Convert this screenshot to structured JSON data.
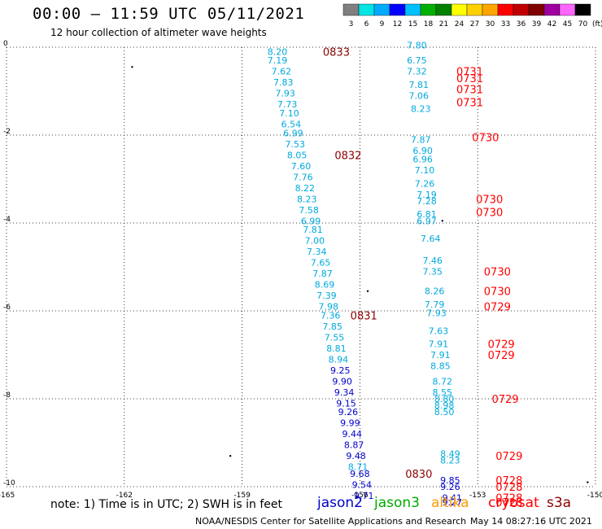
{
  "header": {
    "title": "00:00 – 11:59 UTC 05/11/2021",
    "subtitle": "12 hour collection of altimeter wave heights"
  },
  "colorbar": {
    "labels": [
      "3",
      "6",
      "9",
      "12",
      "15",
      "18",
      "21",
      "24",
      "27",
      "30",
      "33",
      "36",
      "39",
      "42",
      "45",
      "70"
    ],
    "unit": "(ft)",
    "colors": [
      "#808080",
      "#00e5e5",
      "#00aaff",
      "#0000ff",
      "#00c0ff",
      "#00b000",
      "#008000",
      "#ffff00",
      "#ffd000",
      "#ffa500",
      "#ff0000",
      "#c00000",
      "#800000",
      "#a000a0",
      "#ff66ff",
      "#000000"
    ]
  },
  "footer": {
    "note": "note:  1) Time is in UTC;  2) SWH is in feet",
    "credit": "NOAA/NESDIS Center for Satellite Applications and Research",
    "timestamp": "May 14 08:27:16 UTC 2021"
  },
  "legend": [
    {
      "label": "jason2",
      "color": "#0000cc"
    },
    {
      "label": "jason3",
      "color": "#00aa00"
    },
    {
      "label": "altika",
      "color": "#ff9900"
    },
    {
      "label": "cryosat",
      "color": "#ff0000"
    },
    {
      "label": "s3a",
      "color": "#8b0000"
    }
  ],
  "chart_data": {
    "type": "scatter",
    "title": "00:00 – 11:59 UTC 05/11/2021",
    "subtitle": "12 hour collection of altimeter wave heights",
    "xlim": [
      -165,
      -150
    ],
    "ylim": [
      -10,
      0
    ],
    "x_ticks": [
      "-165",
      "-162",
      "-159",
      "-156",
      "-153",
      "-150"
    ],
    "y_ticks": [
      "0",
      "-2",
      "-4",
      "-6",
      "-8",
      "-10"
    ],
    "grid": true,
    "unit": "ft",
    "track_a": [
      {
        "lon": -158.1,
        "lat": -0.1,
        "v": "8.20",
        "c": "#00aadd"
      },
      {
        "lon": -158.1,
        "lat": -0.3,
        "v": "7.19",
        "c": "#00aadd"
      },
      {
        "lon": -158.0,
        "lat": -0.55,
        "v": "7.62",
        "c": "#00aadd"
      },
      {
        "lon": -157.95,
        "lat": -0.8,
        "v": "7.83",
        "c": "#00aadd"
      },
      {
        "lon": -157.9,
        "lat": -1.05,
        "v": "7.93",
        "c": "#00aadd"
      },
      {
        "lon": -157.85,
        "lat": -1.3,
        "v": "7.73",
        "c": "#00aadd"
      },
      {
        "lon": -157.8,
        "lat": -1.5,
        "v": "7.10",
        "c": "#00aadd"
      },
      {
        "lon": -157.75,
        "lat": -1.75,
        "v": "6.54",
        "c": "#00aadd"
      },
      {
        "lon": -157.7,
        "lat": -1.95,
        "v": "6.99",
        "c": "#00aadd"
      },
      {
        "lon": -157.65,
        "lat": -2.2,
        "v": "7.53",
        "c": "#00aadd"
      },
      {
        "lon": -157.6,
        "lat": -2.45,
        "v": "8.05",
        "c": "#00aadd"
      },
      {
        "lon": -157.5,
        "lat": -2.7,
        "v": "7.60",
        "c": "#00aadd"
      },
      {
        "lon": -157.45,
        "lat": -2.95,
        "v": "7.76",
        "c": "#00aadd"
      },
      {
        "lon": -157.4,
        "lat": -3.2,
        "v": "8.22",
        "c": "#00aadd"
      },
      {
        "lon": -157.35,
        "lat": -3.45,
        "v": "8.23",
        "c": "#00aadd"
      },
      {
        "lon": -157.3,
        "lat": -3.7,
        "v": "7.58",
        "c": "#00aadd"
      },
      {
        "lon": -157.25,
        "lat": -3.95,
        "v": "6.99",
        "c": "#00aadd"
      },
      {
        "lon": -157.2,
        "lat": -4.15,
        "v": "7.81",
        "c": "#00aadd"
      },
      {
        "lon": -157.15,
        "lat": -4.4,
        "v": "7.00",
        "c": "#00aadd"
      },
      {
        "lon": -157.1,
        "lat": -4.65,
        "v": "7.34",
        "c": "#00aadd"
      },
      {
        "lon": -157.0,
        "lat": -4.9,
        "v": "7.65",
        "c": "#00aadd"
      },
      {
        "lon": -156.95,
        "lat": -5.15,
        "v": "7.87",
        "c": "#00aadd"
      },
      {
        "lon": -156.9,
        "lat": -5.4,
        "v": "8.69",
        "c": "#00aadd"
      },
      {
        "lon": -156.85,
        "lat": -5.65,
        "v": "7.39",
        "c": "#00aadd"
      },
      {
        "lon": -156.8,
        "lat": -5.9,
        "v": "7.98",
        "c": "#00aadd"
      },
      {
        "lon": -156.75,
        "lat": -6.1,
        "v": "7.36",
        "c": "#00aadd"
      },
      {
        "lon": -156.7,
        "lat": -6.35,
        "v": "7.85",
        "c": "#00aadd"
      },
      {
        "lon": -156.65,
        "lat": -6.6,
        "v": "7.55",
        "c": "#00aadd"
      },
      {
        "lon": -156.6,
        "lat": -6.85,
        "v": "8.81",
        "c": "#00aadd"
      },
      {
        "lon": -156.55,
        "lat": -7.1,
        "v": "8.94",
        "c": "#00aadd"
      },
      {
        "lon": -156.5,
        "lat": -7.35,
        "v": "9.25",
        "c": "#0000cc"
      },
      {
        "lon": -156.45,
        "lat": -7.6,
        "v": "9.90",
        "c": "#0000cc"
      },
      {
        "lon": -156.4,
        "lat": -7.85,
        "v": "9.34",
        "c": "#0000cc"
      },
      {
        "lon": -156.35,
        "lat": -8.1,
        "v": "9.15",
        "c": "#0000cc"
      },
      {
        "lon": -156.3,
        "lat": -8.3,
        "v": "9.26",
        "c": "#0000cc"
      },
      {
        "lon": -156.25,
        "lat": -8.55,
        "v": "9.99",
        "c": "#0000cc"
      },
      {
        "lon": -156.2,
        "lat": -8.8,
        "v": "9.44",
        "c": "#0000cc"
      },
      {
        "lon": -156.15,
        "lat": -9.05,
        "v": "8.87",
        "c": "#0000cc"
      },
      {
        "lon": -156.1,
        "lat": -9.3,
        "v": "9.48",
        "c": "#0000cc"
      },
      {
        "lon": -156.05,
        "lat": -9.55,
        "v": "8.71",
        "c": "#00aadd"
      },
      {
        "lon": -156.0,
        "lat": -9.7,
        "v": "9.68",
        "c": "#0000cc"
      },
      {
        "lon": -155.95,
        "lat": -9.95,
        "v": "9.54",
        "c": "#0000cc"
      },
      {
        "lon": -155.9,
        "lat": -10.2,
        "v": "9.71",
        "c": "#0000cc"
      }
    ],
    "track_a_times": [
      {
        "lon": -156.6,
        "lat": -0.1,
        "t": "0833",
        "c": "#8b0000"
      },
      {
        "lon": -156.3,
        "lat": -2.45,
        "t": "0832",
        "c": "#8b0000"
      },
      {
        "lon": -155.9,
        "lat": -6.1,
        "t": "0831",
        "c": "#8b0000"
      },
      {
        "lon": -154.5,
        "lat": -9.7,
        "t": "0830",
        "c": "#8b0000"
      }
    ],
    "track_b": [
      {
        "lon": -154.55,
        "lat": 0.05,
        "v": "7.80",
        "c": "#00aadd"
      },
      {
        "lon": -154.55,
        "lat": -0.3,
        "v": "6.75",
        "c": "#00aadd"
      },
      {
        "lon": -154.55,
        "lat": -0.55,
        "v": "7.32",
        "c": "#00aadd"
      },
      {
        "lon": -154.5,
        "lat": -0.85,
        "v": "7.81",
        "c": "#00aadd"
      },
      {
        "lon": -154.5,
        "lat": -1.1,
        "v": "7.06",
        "c": "#00aadd"
      },
      {
        "lon": -154.45,
        "lat": -1.4,
        "v": "8.23",
        "c": "#00aadd"
      },
      {
        "lon": -154.45,
        "lat": -2.1,
        "v": "7.87",
        "c": "#00aadd"
      },
      {
        "lon": -154.4,
        "lat": -2.35,
        "v": "6.90",
        "c": "#00aadd"
      },
      {
        "lon": -154.4,
        "lat": -2.55,
        "v": "6.96",
        "c": "#00aadd"
      },
      {
        "lon": -154.35,
        "lat": -2.8,
        "v": "7.10",
        "c": "#00aadd"
      },
      {
        "lon": -154.35,
        "lat": -3.1,
        "v": "7.26",
        "c": "#00aadd"
      },
      {
        "lon": -154.3,
        "lat": -3.35,
        "v": "7.19",
        "c": "#00aadd"
      },
      {
        "lon": -154.3,
        "lat": -3.5,
        "v": "7.28",
        "c": "#00aadd"
      },
      {
        "lon": -154.3,
        "lat": -3.8,
        "v": "6.81",
        "c": "#00aadd"
      },
      {
        "lon": -154.3,
        "lat": -3.95,
        "v": "6.97",
        "c": "#00aadd"
      },
      {
        "lon": -154.2,
        "lat": -4.35,
        "v": "7.64",
        "c": "#00aadd"
      },
      {
        "lon": -154.15,
        "lat": -4.85,
        "v": "7.46",
        "c": "#00aadd"
      },
      {
        "lon": -154.15,
        "lat": -5.1,
        "v": "7.35",
        "c": "#00aadd"
      },
      {
        "lon": -154.1,
        "lat": -5.55,
        "v": "8.26",
        "c": "#00aadd"
      },
      {
        "lon": -154.1,
        "lat": -5.85,
        "v": "7.79",
        "c": "#00aadd"
      },
      {
        "lon": -154.05,
        "lat": -6.05,
        "v": "7.93",
        "c": "#00aadd"
      },
      {
        "lon": -154.0,
        "lat": -6.45,
        "v": "7.63",
        "c": "#00aadd"
      },
      {
        "lon": -154.0,
        "lat": -6.75,
        "v": "7.91",
        "c": "#00aadd"
      },
      {
        "lon": -153.95,
        "lat": -7.0,
        "v": "7.91",
        "c": "#00aadd"
      },
      {
        "lon": -153.95,
        "lat": -7.25,
        "v": "8.85",
        "c": "#00aadd"
      },
      {
        "lon": -153.9,
        "lat": -7.6,
        "v": "8.72",
        "c": "#00aadd"
      },
      {
        "lon": -153.9,
        "lat": -7.85,
        "v": "8.55",
        "c": "#00aadd"
      },
      {
        "lon": -153.85,
        "lat": -8.0,
        "v": "8.80",
        "c": "#00aadd"
      },
      {
        "lon": -153.85,
        "lat": -8.15,
        "v": "8.98",
        "c": "#00aadd"
      },
      {
        "lon": -153.85,
        "lat": -8.3,
        "v": "8.50",
        "c": "#00aadd"
      },
      {
        "lon": -153.7,
        "lat": -9.25,
        "v": "8.49",
        "c": "#00aadd"
      },
      {
        "lon": -153.7,
        "lat": -9.4,
        "v": "8.23",
        "c": "#00aadd"
      },
      {
        "lon": -153.7,
        "lat": -9.85,
        "v": "9.85",
        "c": "#0000cc"
      },
      {
        "lon": -153.7,
        "lat": -10.0,
        "v": "9.26",
        "c": "#0000cc"
      },
      {
        "lon": -153.65,
        "lat": -10.25,
        "v": "9.41",
        "c": "#0000cc"
      },
      {
        "lon": -153.65,
        "lat": -10.35,
        "v": "9.27",
        "c": "#0000cc"
      }
    ],
    "track_b_times": [
      {
        "lon": -153.2,
        "lat": -0.55,
        "t": "0731",
        "c": "#ff0000"
      },
      {
        "lon": -153.2,
        "lat": -0.7,
        "t": "0731",
        "c": "#ff0000"
      },
      {
        "lon": -153.2,
        "lat": -0.95,
        "t": "0731",
        "c": "#ff0000"
      },
      {
        "lon": -153.2,
        "lat": -1.25,
        "t": "0731",
        "c": "#ff0000"
      },
      {
        "lon": -152.8,
        "lat": -2.05,
        "t": "0730",
        "c": "#ff0000"
      },
      {
        "lon": -152.7,
        "lat": -3.45,
        "t": "0730",
        "c": "#ff0000"
      },
      {
        "lon": -152.7,
        "lat": -3.75,
        "t": "0730",
        "c": "#ff0000"
      },
      {
        "lon": -152.5,
        "lat": -5.1,
        "t": "0730",
        "c": "#ff0000"
      },
      {
        "lon": -152.5,
        "lat": -5.55,
        "t": "0730",
        "c": "#ff0000"
      },
      {
        "lon": -152.5,
        "lat": -5.9,
        "t": "0729",
        "c": "#ff0000"
      },
      {
        "lon": -152.4,
        "lat": -6.75,
        "t": "0729",
        "c": "#ff0000"
      },
      {
        "lon": -152.4,
        "lat": -7.0,
        "t": "0729",
        "c": "#ff0000"
      },
      {
        "lon": -152.3,
        "lat": -8.0,
        "t": "0729",
        "c": "#ff0000"
      },
      {
        "lon": -152.2,
        "lat": -9.3,
        "t": "0729",
        "c": "#ff0000"
      },
      {
        "lon": -152.2,
        "lat": -9.85,
        "t": "0728",
        "c": "#ff0000"
      },
      {
        "lon": -152.2,
        "lat": -10.0,
        "t": "0728",
        "c": "#ff0000"
      },
      {
        "lon": -152.2,
        "lat": -10.25,
        "t": "0728",
        "c": "#ff0000"
      },
      {
        "lon": -152.2,
        "lat": -10.35,
        "t": "0728",
        "c": "#ff0000"
      }
    ]
  }
}
